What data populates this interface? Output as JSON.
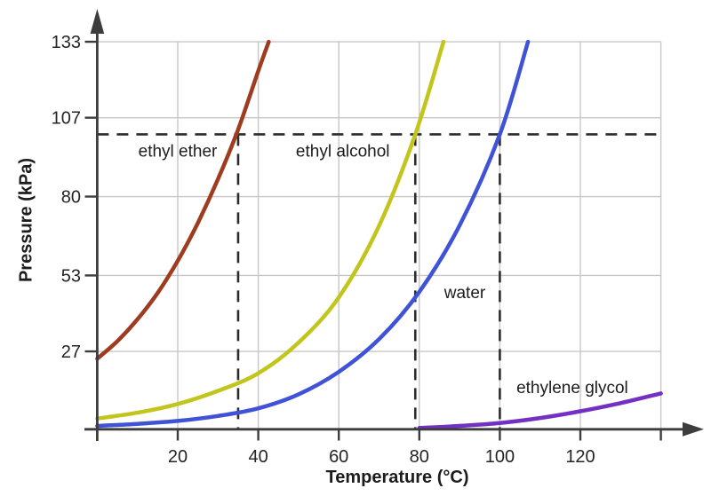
{
  "app": {
    "type": "static-chart-image",
    "background": "#ffffff"
  },
  "chart_data": {
    "type": "line",
    "title": "",
    "xlabel": "Temperature (°C)",
    "ylabel": "Pressure (kPa)",
    "xlim": [
      0,
      146
    ],
    "ylim": [
      0,
      133
    ],
    "x_ticks": [
      20,
      40,
      60,
      80,
      100,
      120
    ],
    "x_ticks_unlabeled": [
      140
    ],
    "y_ticks": [
      27,
      53,
      80,
      107,
      133
    ],
    "grid": true,
    "legend_position": "inline-labels",
    "series": [
      {
        "name": "ethyl ether",
        "color": "#9e3c20",
        "points": [
          [
            0,
            24.5
          ],
          [
            5,
            30.5
          ],
          [
            10,
            38
          ],
          [
            15,
            47
          ],
          [
            20,
            58
          ],
          [
            25,
            71
          ],
          [
            30,
            86
          ],
          [
            35,
            103
          ],
          [
            40,
            123
          ],
          [
            42.6,
            133
          ]
        ]
      },
      {
        "name": "ethyl alcohol",
        "color": "#c1c51c",
        "points": [
          [
            0,
            4
          ],
          [
            10,
            6
          ],
          [
            20,
            9
          ],
          [
            30,
            13.5
          ],
          [
            40,
            19.5
          ],
          [
            50,
            30
          ],
          [
            60,
            45.5
          ],
          [
            70,
            70
          ],
          [
            79,
            101.3
          ],
          [
            86,
            133
          ]
        ]
      },
      {
        "name": "water",
        "color": "#4053d6",
        "points": [
          [
            0,
            1.5
          ],
          [
            10,
            2.2
          ],
          [
            20,
            3.2
          ],
          [
            30,
            4.9
          ],
          [
            40,
            7.5
          ],
          [
            50,
            12.3
          ],
          [
            60,
            20
          ],
          [
            70,
            31.2
          ],
          [
            80,
            47.4
          ],
          [
            90,
            70.1
          ],
          [
            100,
            101.3
          ],
          [
            107,
            133
          ]
        ]
      },
      {
        "name": "ethylene glycol",
        "color": "#7330c3",
        "points": [
          [
            80,
            0.8
          ],
          [
            90,
            1.5
          ],
          [
            100,
            2.5
          ],
          [
            110,
            4.2
          ],
          [
            120,
            6.5
          ],
          [
            130,
            9.3
          ],
          [
            140,
            12.6
          ]
        ]
      }
    ],
    "guides": {
      "atmospheric_pressure_kpa": 101.3,
      "horizontal_dashed": {
        "p": 101.3,
        "t_from": 0,
        "t_to": 140
      },
      "vertical_dashed_t": [
        35,
        79,
        100
      ]
    },
    "annotations": [
      {
        "text": "ethyl ether",
        "t": 20,
        "p": 95.5
      },
      {
        "text": "ethyl alcohol",
        "t": 61,
        "p": 95.5
      },
      {
        "text": "water",
        "t": 91.3,
        "p": 47
      },
      {
        "text": "ethylene glycol",
        "t": 118,
        "p": 14.6
      }
    ]
  },
  "colors": {
    "axis": "#3d3d3d",
    "grid": "#c7c7c7",
    "dashed_guide": "#2c2c2c",
    "tick_text": "#242424",
    "label_text": "#1c1c1c",
    "background": "#ffffff"
  }
}
